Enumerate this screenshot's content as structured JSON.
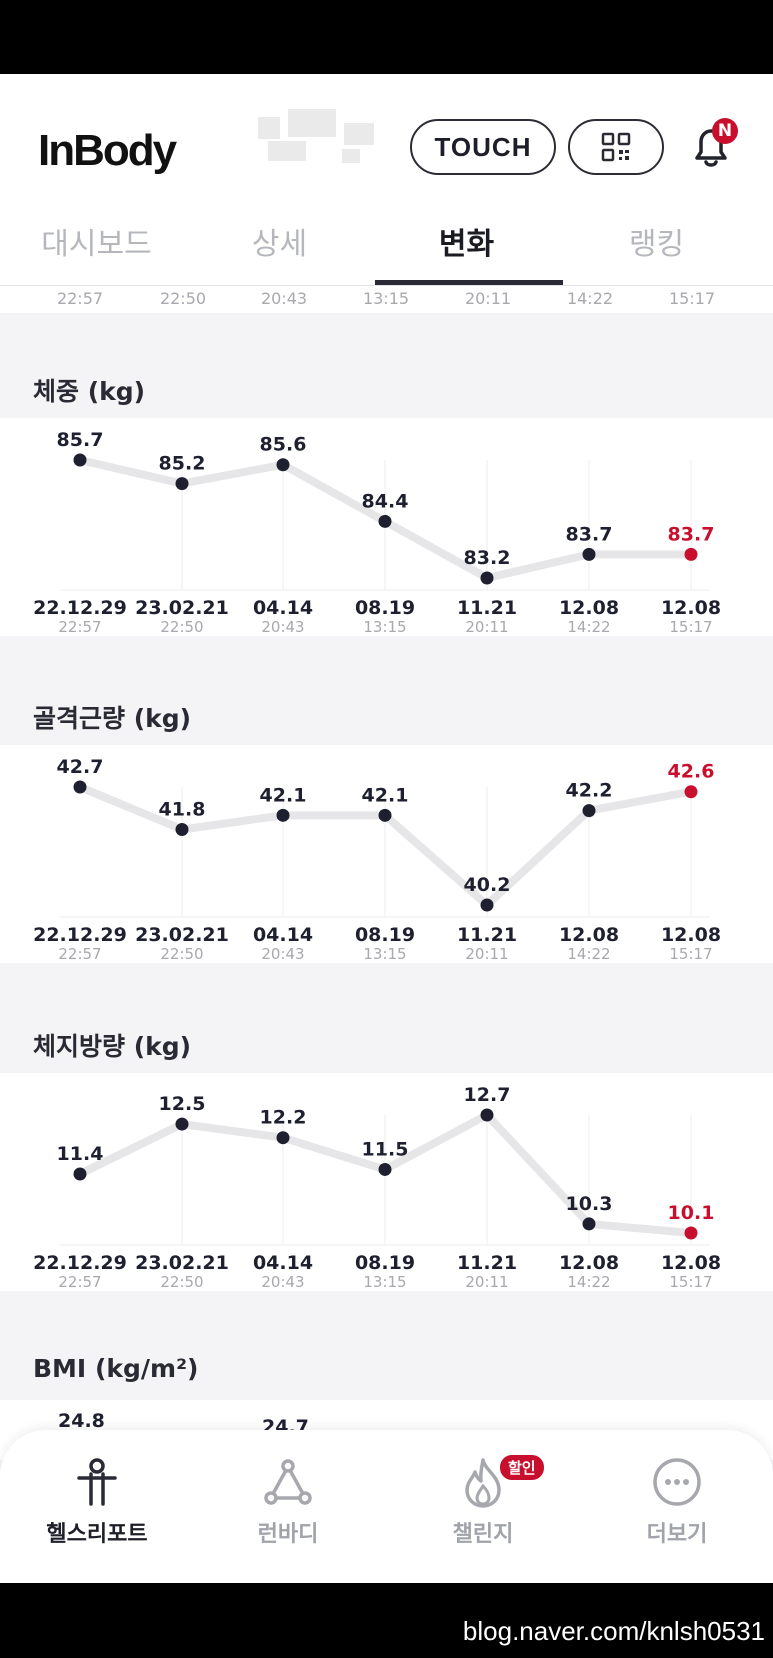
{
  "header": {
    "logo": "InBody",
    "touch_label": "TOUCH",
    "notification_badge": "N"
  },
  "tabs": [
    {
      "label": "대시보드",
      "active": false
    },
    {
      "label": "상세",
      "active": false
    },
    {
      "label": "변화",
      "active": true
    },
    {
      "label": "랭킹",
      "active": false
    }
  ],
  "clipped_times": [
    "22:57",
    "22:50",
    "20:43",
    "13:15",
    "20:11",
    "14:22",
    "15:17"
  ],
  "colors": {
    "accent": "#c8102e",
    "dot": "#1e2030",
    "line": "#e6e6e8"
  },
  "charts": [
    {
      "title": "체중 (kg)",
      "dates": [
        "22.12.29",
        "23.02.21",
        "04.14",
        "08.19",
        "11.21",
        "12.08",
        "12.08"
      ],
      "times": [
        "22:57",
        "22:50",
        "20:43",
        "13:15",
        "20:11",
        "14:22",
        "15:17"
      ],
      "values": [
        "85.7",
        "85.2",
        "85.6",
        "84.4",
        "83.2",
        "83.7",
        "83.7"
      ]
    },
    {
      "title": "골격근량 (kg)",
      "dates": [
        "22.12.29",
        "23.02.21",
        "04.14",
        "08.19",
        "11.21",
        "12.08",
        "12.08"
      ],
      "times": [
        "22:57",
        "22:50",
        "20:43",
        "13:15",
        "20:11",
        "14:22",
        "15:17"
      ],
      "values": [
        "42.7",
        "41.8",
        "42.1",
        "42.1",
        "40.2",
        "42.2",
        "42.6"
      ]
    },
    {
      "title": "체지방량 (kg)",
      "dates": [
        "22.12.29",
        "23.02.21",
        "04.14",
        "08.19",
        "11.21",
        "12.08",
        "12.08"
      ],
      "times": [
        "22:57",
        "22:50",
        "20:43",
        "13:15",
        "20:11",
        "14:22",
        "15:17"
      ],
      "values": [
        "11.4",
        "12.5",
        "12.2",
        "11.5",
        "12.7",
        "10.3",
        "10.1"
      ]
    }
  ],
  "bmi": {
    "title": "BMI (kg/m²)",
    "partial_values": [
      "24.8",
      "24.7"
    ]
  },
  "nav": {
    "items": [
      {
        "label": "헬스리포트",
        "icon": "person-icon",
        "active": true
      },
      {
        "label": "런바디",
        "icon": "network-icon",
        "active": false
      },
      {
        "label": "챌린지",
        "icon": "flame-icon",
        "active": false
      },
      {
        "label": "더보기",
        "icon": "more-icon",
        "active": false
      }
    ],
    "challenge_badge": "할인"
  },
  "watermark": "blog.naver.com/knlsh0531"
}
